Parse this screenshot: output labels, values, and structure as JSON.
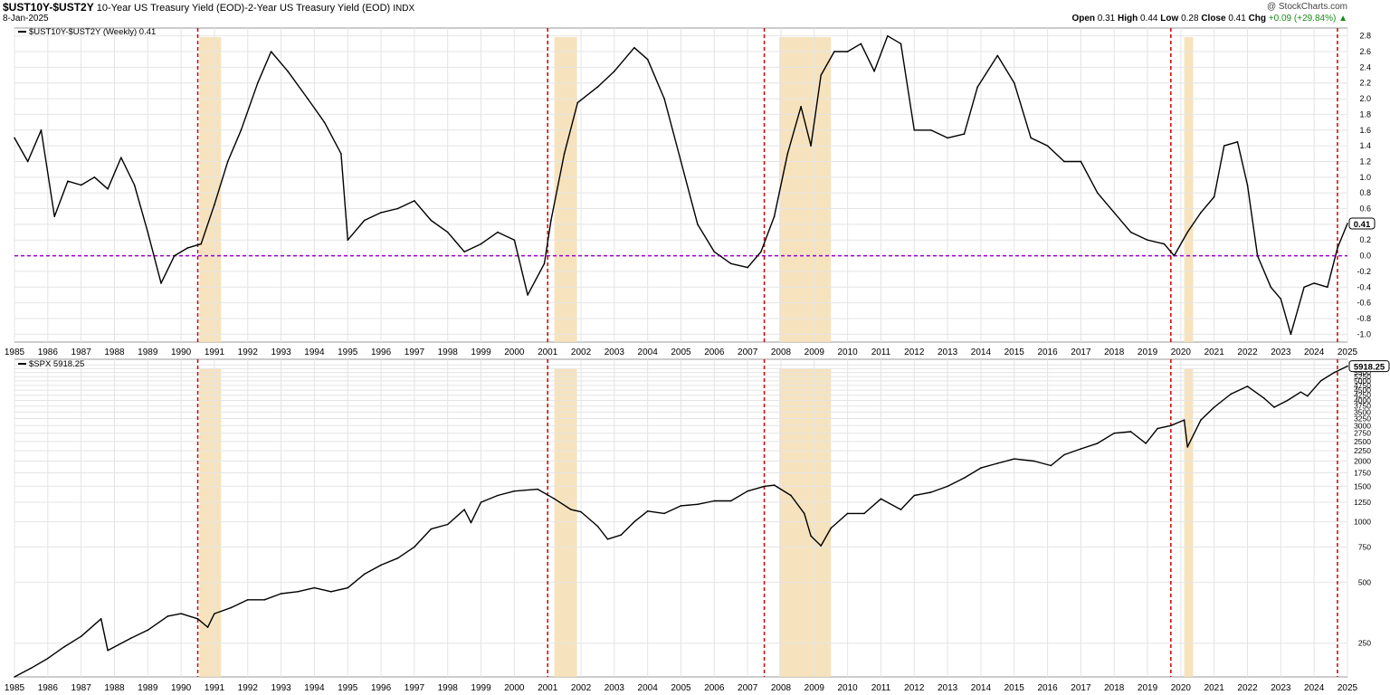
{
  "header": {
    "symbol": "$UST10Y-$UST2Y",
    "description": "10-Year US Treasury Yield (EOD)-2-Year US Treasury Yield (EOD)",
    "exchange": "INDX",
    "date": "8-Jan-2025",
    "credit": "@ StockCharts.com",
    "open_label": "Open",
    "open": "0.31",
    "high_label": "High",
    "high": "0.44",
    "low_label": "Low",
    "low": "0.28",
    "close_label": "Close",
    "close": "0.41",
    "chg_label": "Chg",
    "chg": "+0.09 (+29.84%)"
  },
  "colors": {
    "line": "#000000",
    "recession_shade": "#f5deb3",
    "inversion_marker": "#cc0000",
    "zero_line": "#9900cc",
    "grid": "#e4e4e4"
  },
  "chart_data": [
    {
      "type": "line",
      "legend": "$UST10Y-$UST2Y (Weekly) 0.41",
      "last_value_label": "0.41",
      "x_axis_years": [
        "1985",
        "1986",
        "1987",
        "1988",
        "1989",
        "1990",
        "1991",
        "1992",
        "1993",
        "1994",
        "1995",
        "1996",
        "1997",
        "1998",
        "1999",
        "2000",
        "2001",
        "2002",
        "2003",
        "2004",
        "2005",
        "2006",
        "2007",
        "2008",
        "2009",
        "2010",
        "2011",
        "2012",
        "2013",
        "2014",
        "2015",
        "2016",
        "2017",
        "2018",
        "2019",
        "2020",
        "2021",
        "2022",
        "2023",
        "2024",
        "2025"
      ],
      "ylim": [
        -1.1,
        2.9
      ],
      "y_ticks": [
        -1.0,
        -0.8,
        -0.6,
        -0.4,
        -0.2,
        0.0,
        0.2,
        0.4,
        0.6,
        0.8,
        1.0,
        1.2,
        1.4,
        1.6,
        1.8,
        2.0,
        2.2,
        2.4,
        2.6,
        2.8
      ],
      "reference_line": 0.0,
      "x": [
        1985.0,
        1985.4,
        1985.8,
        1986.2,
        1986.6,
        1987.0,
        1987.4,
        1987.8,
        1988.2,
        1988.6,
        1989.0,
        1989.4,
        1989.8,
        1990.2,
        1990.6,
        1991.0,
        1991.4,
        1991.8,
        1992.3,
        1992.7,
        1993.2,
        1993.8,
        1994.3,
        1994.8,
        1995.0,
        1995.5,
        1996.0,
        1996.5,
        1997.0,
        1997.5,
        1998.0,
        1998.5,
        1999.0,
        1999.5,
        2000.0,
        2000.4,
        2000.9,
        2001.1,
        2001.5,
        2001.9,
        2002.5,
        2003.0,
        2003.6,
        2004.0,
        2004.5,
        2005.0,
        2005.5,
        2006.0,
        2006.5,
        2007.0,
        2007.4,
        2007.8,
        2008.2,
        2008.6,
        2008.9,
        2009.2,
        2009.6,
        2010.0,
        2010.4,
        2010.8,
        2011.2,
        2011.6,
        2012.0,
        2012.5,
        2013.0,
        2013.5,
        2013.9,
        2014.5,
        2015.0,
        2015.5,
        2016.0,
        2016.5,
        2017.0,
        2017.5,
        2018.0,
        2018.5,
        2019.0,
        2019.5,
        2019.8,
        2020.2,
        2020.6,
        2021.0,
        2021.3,
        2021.7,
        2022.0,
        2022.3,
        2022.7,
        2023.0,
        2023.3,
        2023.7,
        2024.0,
        2024.4,
        2024.7,
        2025.0
      ],
      "values": [
        1.5,
        1.2,
        1.6,
        0.5,
        0.95,
        0.9,
        1.0,
        0.85,
        1.25,
        0.9,
        0.3,
        -0.35,
        0.0,
        0.1,
        0.15,
        0.65,
        1.2,
        1.6,
        2.2,
        2.6,
        2.35,
        2.0,
        1.7,
        1.3,
        0.2,
        0.45,
        0.55,
        0.6,
        0.7,
        0.45,
        0.3,
        0.05,
        0.15,
        0.3,
        0.2,
        -0.5,
        -0.1,
        0.45,
        1.3,
        1.95,
        2.15,
        2.35,
        2.65,
        2.5,
        2.0,
        1.2,
        0.4,
        0.05,
        -0.1,
        -0.15,
        0.05,
        0.5,
        1.3,
        1.9,
        1.4,
        2.3,
        2.6,
        2.6,
        2.7,
        2.35,
        2.8,
        2.7,
        1.6,
        1.6,
        1.5,
        1.55,
        2.15,
        2.55,
        2.2,
        1.5,
        1.4,
        1.2,
        1.2,
        0.8,
        0.55,
        0.3,
        0.2,
        0.15,
        0.0,
        0.3,
        0.55,
        0.75,
        1.4,
        1.45,
        0.9,
        0.0,
        -0.4,
        -0.55,
        -1.0,
        -0.4,
        -0.35,
        -0.4,
        0.1,
        0.41
      ]
    },
    {
      "type": "line",
      "legend": "$SPX 5918.25",
      "last_value_label": "5918.25",
      "scale": "log",
      "ylim": [
        170,
        6400
      ],
      "y_ticks": [
        250,
        500,
        750,
        1000,
        1250,
        1500,
        1750,
        2000,
        2250,
        2500,
        2750,
        3000,
        3250,
        3500,
        3750,
        4000,
        4250,
        4500,
        4750,
        5000,
        5250,
        5500,
        5750,
        6000
      ],
      "x": [
        1985.0,
        1985.5,
        1986.0,
        1986.5,
        1987.0,
        1987.6,
        1987.8,
        1988.5,
        1989.0,
        1989.6,
        1990.0,
        1990.5,
        1990.8,
        1991.0,
        1991.5,
        1992.0,
        1992.5,
        1993.0,
        1993.5,
        1994.0,
        1994.5,
        1995.0,
        1995.5,
        1996.0,
        1996.5,
        1997.0,
        1997.5,
        1998.0,
        1998.5,
        1998.7,
        1999.0,
        1999.5,
        2000.0,
        2000.7,
        2001.2,
        2001.7,
        2002.0,
        2002.5,
        2002.8,
        2003.2,
        2003.6,
        2004.0,
        2004.5,
        2005.0,
        2005.5,
        2006.0,
        2006.5,
        2007.0,
        2007.5,
        2007.8,
        2008.3,
        2008.7,
        2008.9,
        2009.2,
        2009.5,
        2010.0,
        2010.5,
        2011.0,
        2011.6,
        2012.0,
        2012.5,
        2013.0,
        2013.5,
        2014.0,
        2014.5,
        2015.0,
        2015.6,
        2016.1,
        2016.5,
        2017.0,
        2017.5,
        2018.0,
        2018.5,
        2018.95,
        2019.3,
        2019.7,
        2020.1,
        2020.2,
        2020.6,
        2021.0,
        2021.5,
        2022.0,
        2022.5,
        2022.8,
        2023.2,
        2023.6,
        2023.8,
        2024.2,
        2024.6,
        2025.0
      ],
      "values": [
        170,
        188,
        210,
        240,
        270,
        330,
        230,
        265,
        290,
        340,
        350,
        330,
        300,
        350,
        375,
        410,
        410,
        440,
        450,
        470,
        450,
        470,
        550,
        610,
        660,
        750,
        920,
        970,
        1150,
        990,
        1250,
        1350,
        1420,
        1450,
        1300,
        1150,
        1120,
        950,
        820,
        860,
        1000,
        1130,
        1100,
        1200,
        1220,
        1270,
        1270,
        1420,
        1500,
        1520,
        1350,
        1100,
        850,
        760,
        930,
        1100,
        1100,
        1300,
        1150,
        1350,
        1400,
        1500,
        1650,
        1850,
        1950,
        2050,
        2000,
        1900,
        2150,
        2300,
        2450,
        2750,
        2800,
        2450,
        2900,
        3000,
        3200,
        2350,
        3200,
        3700,
        4300,
        4700,
        4100,
        3700,
        4000,
        4400,
        4200,
        5000,
        5500,
        5918.25
      ]
    },
    {
      "type": "annotation",
      "recession_shading": [
        [
          1990.55,
          1991.2
        ],
        [
          2001.2,
          2001.88
        ],
        [
          2007.95,
          2009.5
        ],
        [
          2020.1,
          2020.37
        ]
      ],
      "curve_inversion_markers": [
        1990.5,
        2001.0,
        2007.5,
        2019.7,
        2024.7
      ]
    }
  ]
}
